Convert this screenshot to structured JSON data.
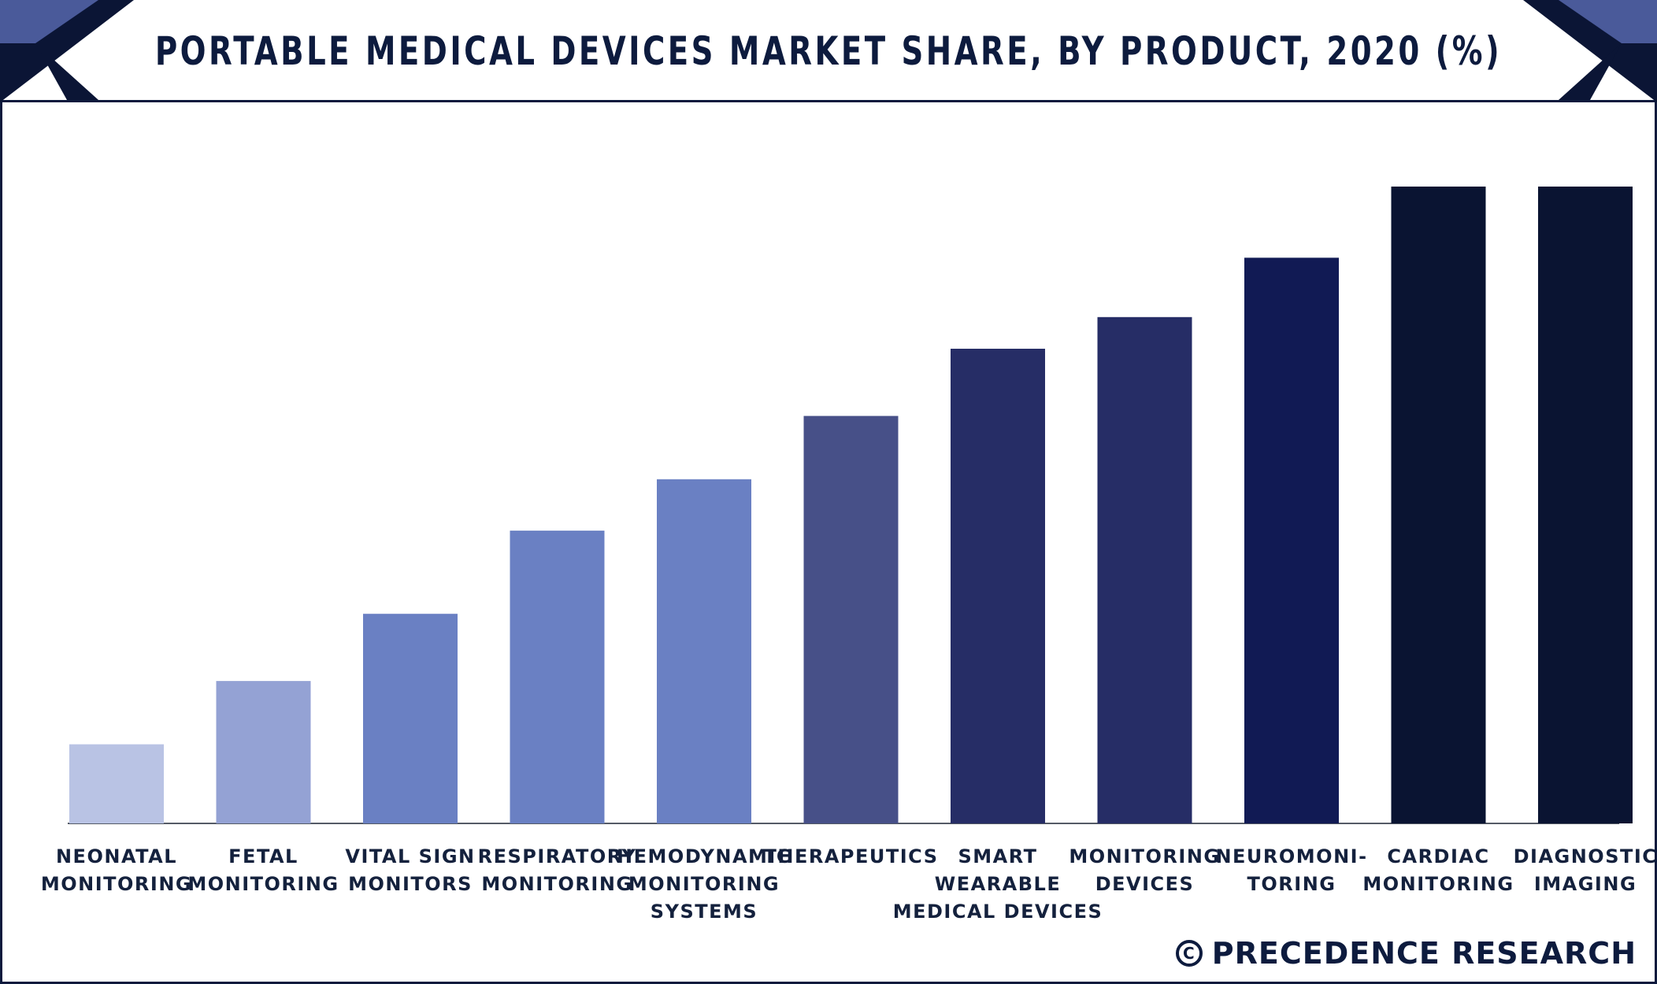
{
  "header": {
    "title": "PORTABLE MEDICAL DEVICES MARKET SHARE, BY PRODUCT, 2020 (%)"
  },
  "credit": {
    "mark": "C",
    "text": "PRECEDENCE RESEARCH"
  },
  "colors": {
    "frame": "#0c1a3d",
    "corner_dark": "#0b1535",
    "corner_accent": "#4a5a9a"
  },
  "chart_data": {
    "type": "bar",
    "title": "PORTABLE MEDICAL DEVICES MARKET SHARE, BY PRODUCT, 2020 (%)",
    "xlabel": "",
    "ylabel": "",
    "ylim": [
      0,
      16
    ],
    "grid": false,
    "categories": [
      "NEONATAL MONITORING",
      "FETAL MONITORING",
      "VITAL SIGN MONITORS",
      "RESPIRATORY MONITORING",
      "HEMODYNAMIC MONITORING SYSTEMS",
      "THERAPEUTICS",
      "SMART WEARABLE MEDICAL DEVICES",
      "MONITORING DEVICES",
      "NEUROMONI-TORING",
      "CARDIAC MONITORING",
      "DIAGNOSTIC IMAGING"
    ],
    "label_lines": [
      [
        "NEONATAL",
        "MONITORING"
      ],
      [
        "FETAL",
        "MONITORING"
      ],
      [
        "VITAL SIGN",
        "MONITORS"
      ],
      [
        "RESPIRATORY",
        "MONITORING"
      ],
      [
        "HEMODYNAMIC",
        "MONITORING",
        "SYSTEMS"
      ],
      [
        "THERAPEUTICS"
      ],
      [
        "SMART",
        "WEARABLE",
        "MEDICAL DEVICES"
      ],
      [
        "MONITORING",
        "DEVICES"
      ],
      [
        "NEUROMONI-",
        "TORING"
      ],
      [
        "CARDIAC",
        "MONITORING"
      ],
      [
        "DIAGNOSTIC",
        "IMAGING"
      ]
    ],
    "values": [
      2.0,
      3.6,
      5.3,
      7.4,
      8.7,
      10.3,
      12.0,
      12.8,
      14.3,
      16.1,
      16.1
    ],
    "bar_colors": [
      "#b9c3e4",
      "#94a2d4",
      "#6a80c3",
      "#6a80c3",
      "#6a80c3",
      "#475088",
      "#262d66",
      "#262d66",
      "#111a54",
      "#0a1432",
      "#0a1432"
    ]
  }
}
